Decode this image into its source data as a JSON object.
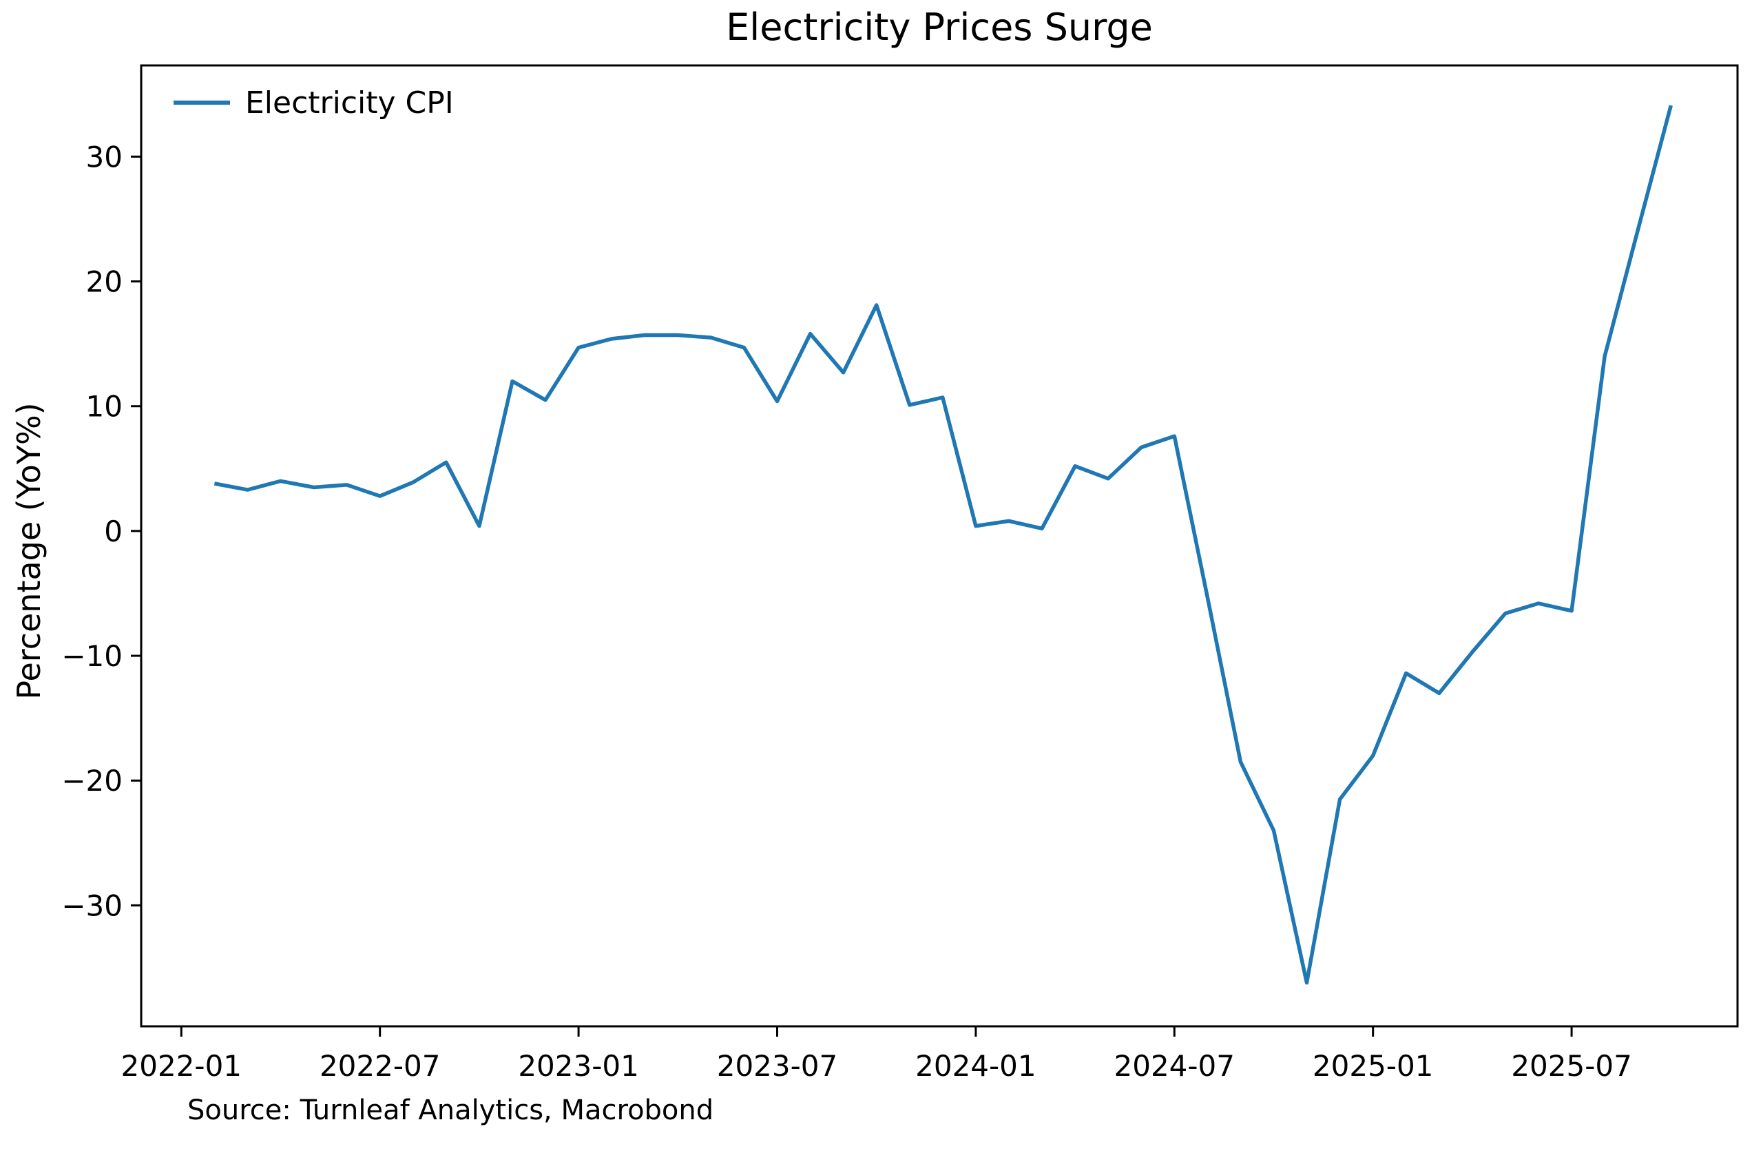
{
  "chart_data": {
    "type": "line",
    "title": "Electricity Prices Surge",
    "ylabel": "Percentage (YoY%)",
    "xlabel": "",
    "source": "Source: Turnleaf Analytics, Macrobond",
    "legend_label": "Electricity CPI",
    "line_color": "#1f77b4",
    "grid": false,
    "legend_position": "upper-left",
    "ylim": [
      -39.7,
      37.3
    ],
    "yticks": [
      {
        "label": "30",
        "value": 30
      },
      {
        "label": "20",
        "value": 20
      },
      {
        "label": "10",
        "value": 10
      },
      {
        "label": "0",
        "value": 0
      },
      {
        "label": "−10",
        "value": -10
      },
      {
        "label": "−20",
        "value": -20
      },
      {
        "label": "−30",
        "value": -30
      }
    ],
    "xticks": [
      {
        "label": "2022-01",
        "month": 0
      },
      {
        "label": "2022-07",
        "month": 6
      },
      {
        "label": "2023-01",
        "month": 12
      },
      {
        "label": "2023-07",
        "month": 18
      },
      {
        "label": "2024-01",
        "month": 24
      },
      {
        "label": "2024-07",
        "month": 30
      },
      {
        "label": "2025-01",
        "month": 36
      },
      {
        "label": "2025-07",
        "month": 42
      }
    ],
    "series": [
      {
        "name": "Electricity CPI",
        "start_month_offset": 1,
        "x": [
          "2022-02",
          "2022-03",
          "2022-04",
          "2022-05",
          "2022-06",
          "2022-07",
          "2022-08",
          "2022-09",
          "2022-10",
          "2022-11",
          "2022-12",
          "2023-01",
          "2023-02",
          "2023-03",
          "2023-04",
          "2023-05",
          "2023-06",
          "2023-07",
          "2023-08",
          "2023-09",
          "2023-10",
          "2023-11",
          "2023-12",
          "2024-01",
          "2024-02",
          "2024-03",
          "2024-04",
          "2024-05",
          "2024-06",
          "2024-07",
          "2024-08",
          "2024-09",
          "2024-10",
          "2024-11",
          "2024-12",
          "2025-01",
          "2025-02",
          "2025-03",
          "2025-04",
          "2025-05",
          "2025-06",
          "2025-07",
          "2025-08",
          "2025-09",
          "2025-10"
        ],
        "values": [
          3.8,
          3.3,
          4.0,
          3.5,
          3.7,
          2.8,
          3.9,
          5.5,
          0.4,
          12.0,
          10.5,
          14.7,
          15.4,
          15.7,
          15.7,
          15.5,
          14.7,
          10.4,
          15.8,
          12.7,
          18.1,
          10.1,
          10.7,
          0.4,
          0.8,
          0.2,
          5.2,
          4.2,
          6.7,
          7.6,
          -5.3,
          -18.5,
          -24.0,
          -36.2,
          -21.5,
          -18.0,
          -11.4,
          -13.0,
          -9.7,
          -6.6,
          -5.8,
          -6.4,
          14.0,
          24.1,
          34.1
        ]
      }
    ]
  }
}
